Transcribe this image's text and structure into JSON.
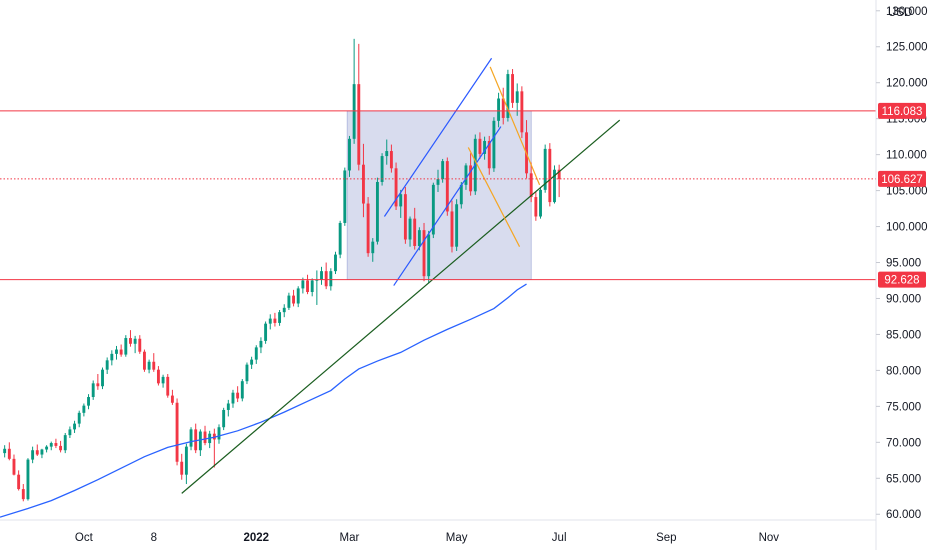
{
  "chart_data": {
    "type": "candlestick",
    "currency_label": "USD",
    "y_ticks": [
      60,
      65,
      70,
      75,
      80,
      85,
      90,
      95,
      100,
      105,
      110,
      115,
      120,
      125,
      130
    ],
    "y_tick_labels": [
      "60.000",
      "65.000",
      "70.000",
      "75.000",
      "80.000",
      "85.000",
      "90.000",
      "95.000",
      "100.000",
      "105.000",
      "110.000",
      "115.000",
      "120.000",
      "125.000",
      "130.000"
    ],
    "x_labels": [
      {
        "label": "Oct",
        "bar": 17
      },
      {
        "label": "8",
        "bar": 32
      },
      {
        "label": "2022",
        "bar": 54
      },
      {
        "label": "Mar",
        "bar": 74
      },
      {
        "label": "May",
        "bar": 97
      },
      {
        "label": "Jul",
        "bar": 119
      },
      {
        "label": "Sep",
        "bar": 142
      },
      {
        "label": "Nov",
        "bar": 164
      }
    ],
    "x_domain": [
      -1,
      187
    ],
    "y_domain": [
      59.2,
      131.5
    ],
    "candles": [
      [
        68.5,
        69.6,
        67.9,
        69.1
      ],
      [
        69.1,
        70,
        67.5,
        67.7
      ],
      [
        67.7,
        68.3,
        65.4,
        65.5
      ],
      [
        65.5,
        66.1,
        63.3,
        63.5
      ],
      [
        63.5,
        64.2,
        61.8,
        62.1
      ],
      [
        62.1,
        67.8,
        61.9,
        67.6
      ],
      [
        67.6,
        69.4,
        67.1,
        68.9
      ],
      [
        68.9,
        69.7,
        68.1,
        68.3
      ],
      [
        68.3,
        69.1,
        67.8,
        69
      ],
      [
        69,
        69.6,
        68.6,
        69.4
      ],
      [
        69.4,
        70.1,
        68.9,
        69.9
      ],
      [
        69.9,
        70.5,
        69.2,
        69.5
      ],
      [
        69.5,
        70.2,
        68.6,
        68.9
      ],
      [
        68.9,
        71.3,
        68.5,
        71
      ],
      [
        71,
        72.2,
        70.6,
        71.8
      ],
      [
        71.8,
        73,
        71.3,
        72.6
      ],
      [
        72.6,
        74.4,
        72.1,
        74.1
      ],
      [
        74.1,
        75.4,
        73.6,
        75.1
      ],
      [
        75.1,
        76.7,
        74.6,
        76.3
      ],
      [
        76.3,
        78.6,
        75.9,
        78.2
      ],
      [
        78.2,
        79.5,
        77.3,
        77.8
      ],
      [
        77.8,
        80.4,
        77.4,
        80.1
      ],
      [
        80.1,
        81.8,
        79.5,
        81.4
      ],
      [
        81.4,
        82.8,
        80.7,
        82.3
      ],
      [
        82.3,
        83.4,
        81.5,
        82.9
      ],
      [
        82.9,
        83.6,
        81.9,
        82.2
      ],
      [
        82.2,
        84.9,
        81.9,
        84.5
      ],
      [
        84.5,
        85.6,
        83.3,
        83.7
      ],
      [
        83.7,
        84.8,
        82.4,
        84.4
      ],
      [
        84.4,
        84.9,
        82.3,
        82.6
      ],
      [
        82.6,
        82.9,
        79.8,
        80.1
      ],
      [
        80.1,
        81.5,
        79.6,
        81.2
      ],
      [
        81.2,
        82.4,
        79.8,
        80.1
      ],
      [
        80.1,
        80.6,
        77.9,
        78.2
      ],
      [
        78.2,
        79.4,
        77.6,
        79.1
      ],
      [
        79.1,
        79.5,
        76.2,
        76.5
      ],
      [
        76.5,
        77.3,
        75.2,
        75.5
      ],
      [
        75.5,
        76.1,
        66.8,
        67.3
      ],
      [
        67.3,
        68.4,
        64.8,
        65.5
      ],
      [
        65.5,
        69.8,
        64.2,
        69.4
      ],
      [
        69.4,
        72.1,
        68.9,
        71.8
      ],
      [
        71.8,
        72.6,
        68.5,
        68.9
      ],
      [
        68.9,
        71.8,
        68.1,
        71.5
      ],
      [
        71.5,
        72.3,
        69.6,
        69.9
      ],
      [
        69.9,
        71.6,
        69.2,
        71.2
      ],
      [
        71.2,
        71.9,
        66.5,
        70.4
      ],
      [
        70.4,
        72.5,
        69.8,
        72.1
      ],
      [
        72.1,
        74.8,
        71.7,
        74.5
      ],
      [
        74.5,
        75.9,
        73.6,
        75.4
      ],
      [
        75.4,
        77.3,
        74.8,
        76.9
      ],
      [
        76.9,
        77.8,
        75.6,
        76.1
      ],
      [
        76.1,
        78.8,
        75.7,
        78.5
      ],
      [
        78.5,
        81.1,
        78.1,
        80.8
      ],
      [
        80.8,
        81.9,
        80.2,
        81.5
      ],
      [
        81.5,
        83.5,
        80.9,
        83.2
      ],
      [
        83.2,
        84.6,
        82.4,
        84.1
      ],
      [
        84.1,
        86.8,
        83.7,
        86.5
      ],
      [
        86.5,
        87.8,
        85.7,
        87.2
      ],
      [
        87.2,
        88,
        86.1,
        86.6
      ],
      [
        86.6,
        88.4,
        86.2,
        88.1
      ],
      [
        88.1,
        89.2,
        87.4,
        88.7
      ],
      [
        88.7,
        90.8,
        88.4,
        90.4
      ],
      [
        90.4,
        91.2,
        88.9,
        89.3
      ],
      [
        89.3,
        91.7,
        88.8,
        91.4
      ],
      [
        91.4,
        92.9,
        90.7,
        92.5
      ],
      [
        92.5,
        93.3,
        90.6,
        90.9
      ],
      [
        90.9,
        92.8,
        90.3,
        92.5
      ],
      [
        92.5,
        93.9,
        89.1,
        92.6
      ],
      [
        92.6,
        94.4,
        91.9,
        93.8
      ],
      [
        93.8,
        95,
        91.3,
        91.7
      ],
      [
        91.7,
        94.2,
        91.1,
        93.8
      ],
      [
        93.8,
        96.5,
        93.4,
        96.1
      ],
      [
        96.1,
        100.8,
        95.6,
        100.5
      ],
      [
        100.5,
        108.2,
        100.1,
        107.8
      ],
      [
        107.8,
        112.6,
        106.9,
        112.2
      ],
      [
        112.2,
        126.1,
        111.5,
        119.8
      ],
      [
        119.8,
        125.4,
        107.8,
        108.6
      ],
      [
        108.6,
        111.5,
        101.3,
        103.2
      ],
      [
        103.2,
        104.1,
        95.8,
        96.3
      ],
      [
        96.3,
        98.4,
        95.1,
        97.9
      ],
      [
        97.9,
        106.8,
        97.5,
        106.2
      ],
      [
        106.2,
        110.2,
        105.7,
        109.8
      ],
      [
        109.8,
        112.1,
        108.6,
        110.5
      ],
      [
        110.5,
        111.4,
        107.5,
        108.1
      ],
      [
        108.1,
        108.9,
        102.3,
        102.8
      ],
      [
        102.8,
        105.1,
        101.2,
        104.5
      ],
      [
        104.5,
        105.5,
        97.6,
        98.2
      ],
      [
        98.2,
        101.4,
        97.2,
        101.1
      ],
      [
        101.1,
        102.6,
        96.8,
        97.3
      ],
      [
        97.3,
        99.9,
        96.7,
        99.5
      ],
      [
        99.5,
        100.5,
        92.4,
        93.1
      ],
      [
        93.1,
        99.4,
        92.1,
        98.9
      ],
      [
        98.9,
        106.1,
        98.4,
        105.8
      ],
      [
        105.8,
        107.9,
        104.8,
        106.6
      ],
      [
        106.6,
        109.4,
        106.1,
        109.1
      ],
      [
        109.1,
        109.6,
        101.5,
        102.1
      ],
      [
        102.1,
        103.6,
        96.4,
        97.2
      ],
      [
        97.2,
        103.8,
        96.6,
        103.1
      ],
      [
        103.1,
        106.2,
        102.5,
        105.8
      ],
      [
        105.8,
        108.8,
        105.1,
        108.5
      ],
      [
        108.5,
        110.2,
        104.3,
        104.9
      ],
      [
        104.9,
        112.8,
        104.4,
        112.2
      ],
      [
        112.2,
        113.1,
        109.4,
        110.1
      ],
      [
        110.1,
        112.5,
        109.3,
        111.9
      ],
      [
        111.9,
        112.6,
        107.2,
        108.1
      ],
      [
        108.1,
        115.2,
        107.6,
        114.7
      ],
      [
        114.7,
        118.6,
        113.8,
        117.8
      ],
      [
        117.8,
        119.3,
        114.2,
        115.1
      ],
      [
        115.1,
        121.8,
        114.6,
        121.2
      ],
      [
        121.2,
        121.9,
        116.5,
        117.2
      ],
      [
        117.2,
        119.9,
        115.4,
        118.8
      ],
      [
        118.8,
        119.5,
        112.3,
        113.1
      ],
      [
        113.1,
        114.8,
        106.7,
        107.4
      ],
      [
        107.4,
        108.9,
        103.4,
        104.1
      ],
      [
        104.1,
        104.8,
        100.8,
        101.4
      ],
      [
        101.4,
        105.5,
        101.1,
        105.1
      ],
      [
        105.1,
        111.4,
        104.7,
        110.8
      ],
      [
        110.8,
        111.6,
        102.8,
        103.4
      ],
      [
        103.4,
        108.5,
        103.2,
        107.9
      ],
      [
        107.9,
        108.6,
        104.1,
        106.6
      ]
    ],
    "ma_points": [
      [
        -1,
        59.6
      ],
      [
        5,
        60.8
      ],
      [
        10,
        61.9
      ],
      [
        15,
        63.3
      ],
      [
        20,
        64.8
      ],
      [
        25,
        66.4
      ],
      [
        30,
        68
      ],
      [
        35,
        69.3
      ],
      [
        40,
        70.1
      ],
      [
        45,
        70.7
      ],
      [
        50,
        71.6
      ],
      [
        55,
        72.8
      ],
      [
        60,
        74.2
      ],
      [
        65,
        75.7
      ],
      [
        70,
        77.2
      ],
      [
        73,
        78.8
      ],
      [
        76,
        80.2
      ],
      [
        80,
        81.3
      ],
      [
        85,
        82.5
      ],
      [
        90,
        84.2
      ],
      [
        95,
        85.7
      ],
      [
        100,
        87.1
      ],
      [
        105,
        88.6
      ],
      [
        108,
        90.1
      ],
      [
        110,
        91.2
      ],
      [
        112,
        92
      ]
    ],
    "horizontal_levels": [
      {
        "value": 116.083,
        "label": "116.083",
        "style": "solid",
        "color": "#f23645"
      },
      {
        "value": 92.628,
        "label": "92.628",
        "style": "solid",
        "color": "#f23645"
      },
      {
        "value": 106.627,
        "label": "106.627",
        "style": "dotted",
        "color": "#f23645"
      }
    ],
    "range_box": {
      "x1": 73.5,
      "x2": 113,
      "y_top": 116.083,
      "y_bottom": 92.628,
      "fill": "#3c4fa8",
      "opacity": 0.2
    },
    "trendlines": [
      {
        "name": "support-trend",
        "color": "#1b5e20",
        "points": [
          [
            38,
            62.9
          ],
          [
            132,
            114.8
          ]
        ]
      },
      {
        "name": "channel-upper",
        "color": "#2b59ff",
        "points": [
          [
            81.5,
            101.4
          ],
          [
            104.5,
            123.4
          ]
        ]
      },
      {
        "name": "channel-lower",
        "color": "#2b59ff",
        "points": [
          [
            83.5,
            91.8
          ],
          [
            106.5,
            113.9
          ]
        ]
      },
      {
        "name": "falling-upper",
        "color": "#f5a623",
        "points": [
          [
            104.2,
            122.2
          ],
          [
            114.8,
            105.8
          ]
        ]
      },
      {
        "name": "falling-lower",
        "color": "#f5a623",
        "points": [
          [
            99.5,
            111
          ],
          [
            110.5,
            97.2
          ]
        ]
      }
    ],
    "colors": {
      "up": "#089981",
      "down": "#f23645",
      "ma": "#2962ff",
      "grid": "#f0f3fa",
      "axis_line": "#e0e3eb"
    }
  }
}
